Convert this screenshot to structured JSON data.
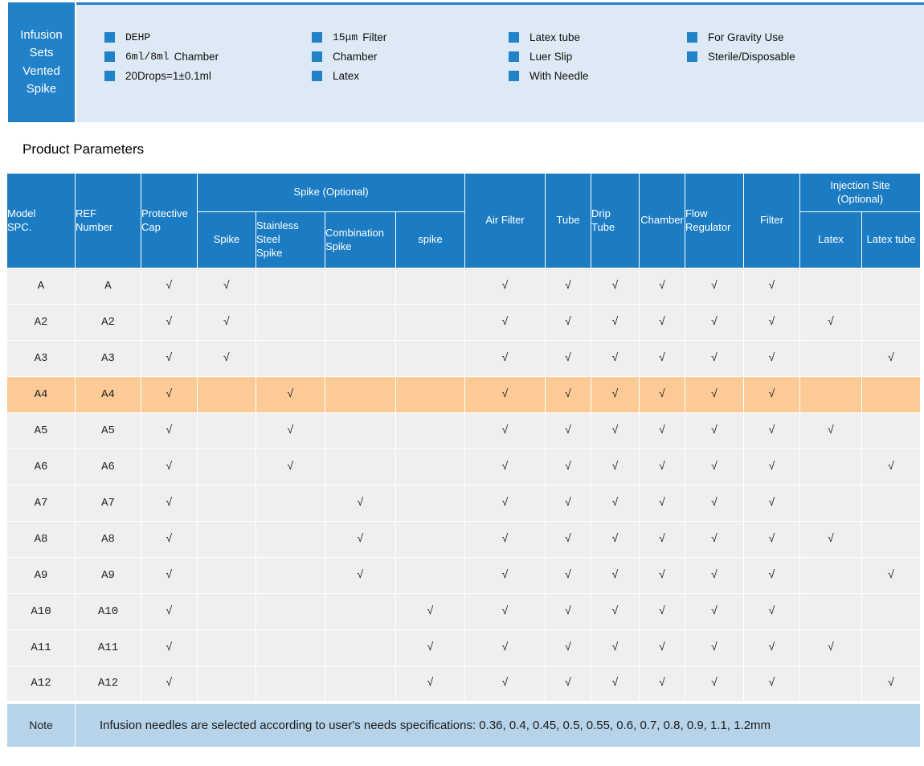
{
  "colors": {
    "accent": "#2181c9",
    "header_blue": "#1b7cc3",
    "band_bg": "#dde9f4",
    "row_bg": "#efefef",
    "highlight": "#fcca96",
    "note_bg": "#b6d3e9"
  },
  "banner": {
    "title": "Infusion\nSets\nVented\nSpike",
    "feature_columns": [
      {
        "items": [
          {
            "pre": "DEHP",
            "text": ""
          },
          {
            "pre": "6ml/8ml",
            "text": "Chamber"
          },
          {
            "pre": "",
            "text": "20Drops=1±0.1ml"
          }
        ]
      },
      {
        "items": [
          {
            "pre": "15μm",
            "text": "Filter"
          },
          {
            "pre": "",
            "text": "Chamber"
          },
          {
            "pre": "",
            "text": "Latex"
          }
        ]
      },
      {
        "items": [
          {
            "pre": "",
            "text": "Latex tube"
          },
          {
            "pre": "",
            "text": "Luer Slip"
          },
          {
            "pre": "",
            "text": "With Needle"
          }
        ]
      },
      {
        "items": [
          {
            "pre": "",
            "text": "For Gravity Use"
          },
          {
            "pre": "",
            "text": "Sterile/Disposable"
          }
        ]
      }
    ]
  },
  "section_title": "Product Parameters",
  "table": {
    "check_mark": "√",
    "headers": {
      "model": "Model\nSPC.",
      "ref": "REF\nNumber",
      "protective_cap": "Protective\nCap",
      "spike_group": "Spike (Optional)",
      "spike": "Spike",
      "stainless": "Stainless\nSteel\nSpike",
      "combination": "Combination\nSpike",
      "spike_lower": "spike",
      "air_filter": "Air Filter",
      "tube": "Tube",
      "drip_tube": "Drip\nTube",
      "chamber": "Chamber",
      "flow_regulator": "Flow\nRegulator",
      "filter": "Filter",
      "injection_group": "Injection Site\n(Optional)",
      "latex": "Latex",
      "latex_tube": "Latex tube"
    },
    "rows": [
      {
        "model": "A",
        "ref": "A",
        "highlight": false,
        "checks": [
          1,
          1,
          0,
          0,
          0,
          1,
          1,
          1,
          1,
          1,
          1,
          0,
          0
        ]
      },
      {
        "model": "A2",
        "ref": "A2",
        "highlight": false,
        "checks": [
          1,
          1,
          0,
          0,
          0,
          1,
          1,
          1,
          1,
          1,
          1,
          1,
          0
        ]
      },
      {
        "model": "A3",
        "ref": "A3",
        "highlight": false,
        "checks": [
          1,
          1,
          0,
          0,
          0,
          1,
          1,
          1,
          1,
          1,
          1,
          0,
          1
        ]
      },
      {
        "model": "A4",
        "ref": "A4",
        "highlight": true,
        "checks": [
          1,
          0,
          1,
          0,
          0,
          1,
          1,
          1,
          1,
          1,
          1,
          0,
          0
        ]
      },
      {
        "model": "A5",
        "ref": "A5",
        "highlight": false,
        "checks": [
          1,
          0,
          1,
          0,
          0,
          1,
          1,
          1,
          1,
          1,
          1,
          1,
          0
        ]
      },
      {
        "model": "A6",
        "ref": "A6",
        "highlight": false,
        "checks": [
          1,
          0,
          1,
          0,
          0,
          1,
          1,
          1,
          1,
          1,
          1,
          0,
          1
        ]
      },
      {
        "model": "A7",
        "ref": "A7",
        "highlight": false,
        "checks": [
          1,
          0,
          0,
          1,
          0,
          1,
          1,
          1,
          1,
          1,
          1,
          0,
          0
        ]
      },
      {
        "model": "A8",
        "ref": "A8",
        "highlight": false,
        "checks": [
          1,
          0,
          0,
          1,
          0,
          1,
          1,
          1,
          1,
          1,
          1,
          1,
          0
        ]
      },
      {
        "model": "A9",
        "ref": "A9",
        "highlight": false,
        "checks": [
          1,
          0,
          0,
          1,
          0,
          1,
          1,
          1,
          1,
          1,
          1,
          0,
          1
        ]
      },
      {
        "model": "A10",
        "ref": "A10",
        "highlight": false,
        "checks": [
          1,
          0,
          0,
          0,
          1,
          1,
          1,
          1,
          1,
          1,
          1,
          0,
          0
        ]
      },
      {
        "model": "A11",
        "ref": "A11",
        "highlight": false,
        "checks": [
          1,
          0,
          0,
          0,
          1,
          1,
          1,
          1,
          1,
          1,
          1,
          1,
          0
        ]
      },
      {
        "model": "A12",
        "ref": "A12",
        "highlight": false,
        "checks": [
          1,
          0,
          0,
          0,
          1,
          1,
          1,
          1,
          1,
          1,
          1,
          0,
          1
        ]
      }
    ],
    "note": {
      "label": "Note",
      "text": "Infusion needles are selected according to user's needs specifications:  0.36, 0.4, 0.45, 0.5, 0.55, 0.6, 0.7, 0.8, 0.9, 1.1, 1.2mm"
    }
  }
}
